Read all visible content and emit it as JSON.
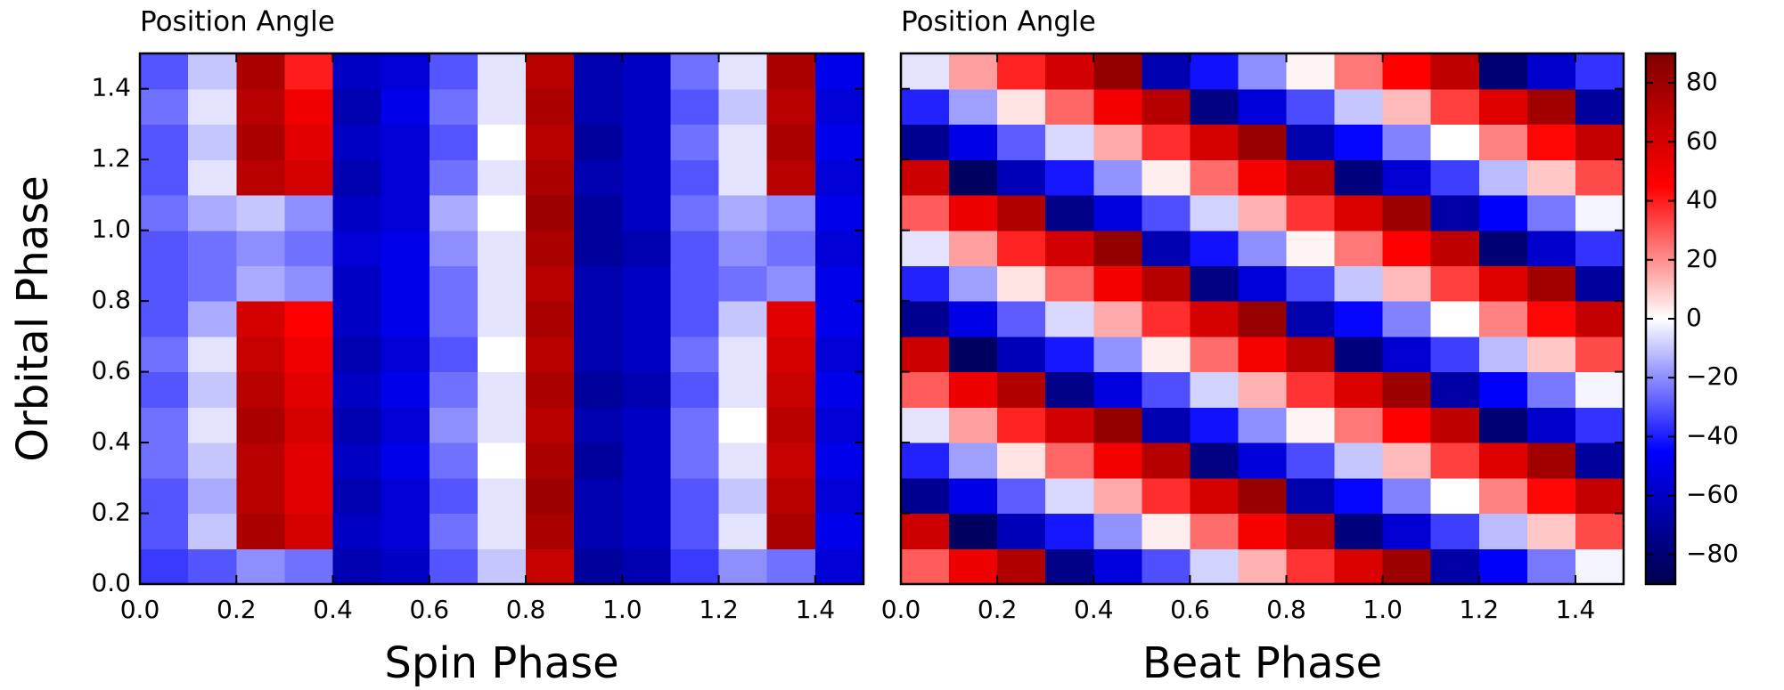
{
  "chart_data": [
    {
      "type": "heatmap",
      "title": "Position Angle",
      "xlabel": "Spin Phase",
      "ylabel": "Orbital Phase",
      "xlim": [
        0,
        1.5
      ],
      "ylim": [
        0,
        1.5
      ],
      "xticks": [
        {
          "value": 0,
          "label": "0.0"
        },
        {
          "value": 0.2,
          "label": "0.2"
        },
        {
          "value": 0.4,
          "label": "0.4"
        },
        {
          "value": 0.6,
          "label": "0.6"
        },
        {
          "value": 0.8,
          "label": "0.8"
        },
        {
          "value": 1,
          "label": "1.0"
        },
        {
          "value": 1.2,
          "label": "1.2"
        },
        {
          "value": 1.4,
          "label": "1.4"
        }
      ],
      "yticks": [
        {
          "value": 0,
          "label": "0.0"
        },
        {
          "value": 0.2,
          "label": "0.2"
        },
        {
          "value": 0.4,
          "label": "0.4"
        },
        {
          "value": 0.6,
          "label": "0.6"
        },
        {
          "value": 0.8,
          "label": "0.8"
        },
        {
          "value": 1,
          "label": "1.0"
        },
        {
          "value": 1.2,
          "label": "1.2"
        },
        {
          "value": 1.4,
          "label": "1.4"
        }
      ],
      "z": [
        [
          -35,
          -30,
          -20,
          -25,
          -65,
          -60,
          -30,
          -10,
          65,
          -70,
          -65,
          -35,
          -20,
          -25,
          -55
        ],
        [
          -30,
          -10,
          75,
          60,
          -60,
          -55,
          -25,
          -5,
          75,
          -65,
          -60,
          -30,
          -5,
          75,
          -50
        ],
        [
          -30,
          -15,
          70,
          55,
          -65,
          -55,
          -30,
          -5,
          80,
          -65,
          -60,
          -30,
          -10,
          70,
          -55
        ],
        [
          -25,
          -10,
          70,
          55,
          -60,
          -50,
          -25,
          0,
          75,
          -70,
          -60,
          -25,
          -5,
          65,
          -50
        ],
        [
          -25,
          -5,
          75,
          60,
          -65,
          -55,
          -20,
          -5,
          70,
          -65,
          -60,
          -25,
          0,
          70,
          -55
        ],
        [
          -30,
          -10,
          70,
          55,
          -60,
          -50,
          -25,
          -5,
          75,
          -70,
          -65,
          -30,
          -5,
          65,
          -50
        ],
        [
          -25,
          -5,
          65,
          50,
          -65,
          -55,
          -30,
          0,
          70,
          -65,
          -60,
          -25,
          -5,
          60,
          -55
        ],
        [
          -30,
          -15,
          60,
          45,
          -60,
          -50,
          -25,
          -5,
          75,
          -65,
          -60,
          -30,
          -10,
          55,
          -50
        ],
        [
          -30,
          -25,
          -15,
          -20,
          -60,
          -50,
          -25,
          -5,
          70,
          -65,
          -60,
          -30,
          -25,
          -20,
          -50
        ],
        [
          -30,
          -25,
          -20,
          -25,
          -55,
          -50,
          -20,
          -5,
          75,
          -70,
          -65,
          -30,
          -20,
          -25,
          -55
        ],
        [
          -25,
          -15,
          -10,
          -20,
          -60,
          -55,
          -15,
          0,
          80,
          -70,
          -60,
          -25,
          -15,
          -20,
          -50
        ],
        [
          -30,
          -5,
          70,
          60,
          -65,
          -55,
          -25,
          -5,
          75,
          -65,
          -60,
          -30,
          -5,
          70,
          -55
        ],
        [
          -30,
          -10,
          75,
          55,
          -60,
          -55,
          -30,
          0,
          70,
          -70,
          -60,
          -25,
          -5,
          75,
          -50
        ],
        [
          -25,
          -5,
          70,
          50,
          -65,
          -50,
          -25,
          -5,
          75,
          -65,
          -60,
          -30,
          -10,
          70,
          -55
        ],
        [
          -30,
          -10,
          75,
          40,
          -60,
          -55,
          -30,
          -5,
          70,
          -65,
          -60,
          -25,
          -5,
          75,
          -50
        ]
      ]
    },
    {
      "type": "heatmap",
      "title": "Position Angle",
      "xlabel": "Beat Phase",
      "xlim": [
        0,
        1.5
      ],
      "ylim": [
        0,
        1.5
      ],
      "xticks": [
        {
          "value": 0,
          "label": "0.0"
        },
        {
          "value": 0.2,
          "label": "0.2"
        },
        {
          "value": 0.4,
          "label": "0.4"
        },
        {
          "value": 0.6,
          "label": "0.6"
        },
        {
          "value": 0.8,
          "label": "0.8"
        },
        {
          "value": 1,
          "label": "1.0"
        },
        {
          "value": 1.2,
          "label": "1.2"
        },
        {
          "value": 1.4,
          "label": "1.4"
        }
      ],
      "z": [
        [
          29,
          51,
          73,
          -75,
          -53,
          -31,
          -8,
          14,
          36,
          58,
          80,
          -68,
          -46,
          -24,
          -2
        ],
        [
          63,
          -85,
          -63,
          -41,
          -19,
          3,
          26,
          48,
          70,
          -78,
          -56,
          -34,
          -12,
          10,
          32
        ],
        [
          -73,
          -51,
          -29,
          -7,
          15,
          37,
          60,
          82,
          -66,
          -44,
          -22,
          0,
          22,
          44,
          66
        ],
        [
          -39,
          -17,
          5,
          27,
          49,
          71,
          -77,
          -54,
          -32,
          -10,
          12,
          34,
          56,
          78,
          -70
        ],
        [
          -5,
          17,
          39,
          61,
          83,
          -65,
          -42,
          -20,
          2,
          24,
          46,
          68,
          -80,
          -58,
          -36
        ],
        [
          29,
          51,
          73,
          -75,
          -53,
          -31,
          -8,
          14,
          36,
          58,
          80,
          -68,
          -46,
          -24,
          -2
        ],
        [
          63,
          -85,
          -63,
          -41,
          -19,
          3,
          26,
          48,
          70,
          -78,
          -56,
          -34,
          -12,
          10,
          32
        ],
        [
          -73,
          -51,
          -29,
          -7,
          15,
          37,
          60,
          82,
          -66,
          -44,
          -22,
          0,
          22,
          44,
          66
        ],
        [
          -39,
          -17,
          5,
          27,
          49,
          71,
          -77,
          -54,
          -32,
          -10,
          12,
          34,
          56,
          78,
          -70
        ],
        [
          -5,
          17,
          39,
          61,
          83,
          -65,
          -42,
          -20,
          2,
          24,
          46,
          68,
          -80,
          -58,
          -36
        ],
        [
          29,
          51,
          73,
          -75,
          -53,
          -31,
          -8,
          14,
          36,
          58,
          80,
          -68,
          -46,
          -24,
          -2
        ],
        [
          63,
          -85,
          -63,
          -41,
          -19,
          3,
          26,
          48,
          70,
          -78,
          -56,
          -34,
          -12,
          10,
          32
        ],
        [
          -73,
          -51,
          -29,
          -7,
          15,
          37,
          60,
          82,
          -66,
          -44,
          -22,
          0,
          22,
          44,
          66
        ],
        [
          -39,
          -17,
          5,
          27,
          49,
          71,
          -77,
          -54,
          -32,
          -10,
          12,
          34,
          56,
          78,
          -70
        ],
        [
          -5,
          17,
          39,
          61,
          83,
          -65,
          -42,
          -20,
          2,
          24,
          46,
          68,
          -80,
          -58,
          -36
        ]
      ]
    }
  ],
  "colorbar": {
    "clim": [
      -90,
      90
    ],
    "colormap": "seismic",
    "ticks": [
      {
        "value": -80,
        "label": "−80"
      },
      {
        "value": -60,
        "label": "−60"
      },
      {
        "value": -40,
        "label": "−40"
      },
      {
        "value": -20,
        "label": "−20"
      },
      0,
      20,
      40,
      60,
      80
    ]
  }
}
